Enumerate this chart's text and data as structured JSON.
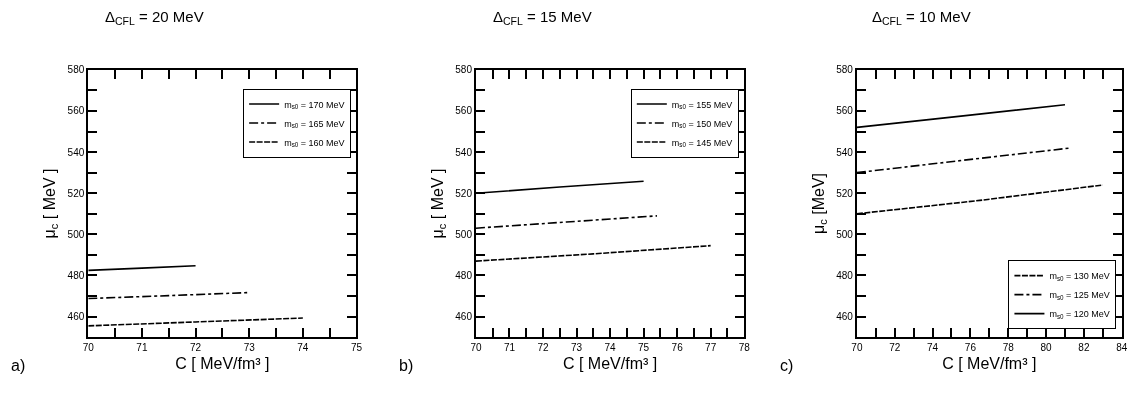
{
  "chart_data": [
    {
      "type": "line",
      "title": "Δ$_{CFL}$ = 20 MeV",
      "xlabel": "C [ MeV/fm³ ]",
      "ylabel": "μ$_{c}$ [ MeV ]",
      "annotations": [
        "a)"
      ],
      "legend": "top right",
      "xlim": [
        70,
        75
      ],
      "ylim": [
        450,
        580
      ],
      "xticks": [
        70,
        {
          "value": 70.5,
          "label": null
        },
        71,
        {
          "value": 71.5,
          "label": null
        },
        72,
        {
          "value": 72.5,
          "label": null
        },
        73,
        {
          "value": 73.5,
          "label": null
        },
        74,
        {
          "value": 74.5,
          "label": null
        },
        75
      ],
      "yticks": [
        460,
        {
          "value": 470,
          "label": null
        },
        480,
        {
          "value": 490,
          "label": null
        },
        500,
        {
          "value": 510,
          "label": null
        },
        520,
        {
          "value": 530,
          "label": null
        },
        540,
        {
          "value": 550,
          "label": null
        },
        560,
        {
          "value": 570,
          "label": null
        },
        580
      ],
      "series": [
        {
          "name": "m$_{s0}$ = 170 MeV",
          "color": "#000000",
          "line_style": "solid",
          "x": [
            70,
            71,
            72
          ],
          "values": [
            482.5,
            483.6,
            484.7
          ]
        },
        {
          "name": "m$_{s0}$ = 165 MeV",
          "color": "#000000",
          "line_style": "dashdot",
          "x": [
            70,
            71.5,
            73
          ],
          "values": [
            468.8,
            470.2,
            471.7
          ]
        },
        {
          "name": "m$_{s0}$ = 160 MeV",
          "color": "#000000",
          "line_style": "dashed",
          "x": [
            70,
            72,
            74
          ],
          "values": [
            455.5,
            457.4,
            459.3
          ]
        }
      ]
    },
    {
      "type": "line",
      "title": "Δ$_{CFL}$ = 15 MeV",
      "xlabel": "C [ MeV/fm³ ]",
      "ylabel": "μ$_{c}$ [ MeV ]",
      "annotations": [
        "b)"
      ],
      "legend": "top right",
      "xlim": [
        70,
        78
      ],
      "ylim": [
        450,
        580
      ],
      "xticks": [
        70,
        {
          "value": 70.5,
          "label": null
        },
        71,
        {
          "value": 71.5,
          "label": null
        },
        72,
        {
          "value": 72.5,
          "label": null
        },
        73,
        {
          "value": 73.5,
          "label": null
        },
        74,
        {
          "value": 74.5,
          "label": null
        },
        75,
        {
          "value": 75.5,
          "label": null
        },
        76,
        {
          "value": 76.5,
          "label": null
        },
        77,
        {
          "value": 77.5,
          "label": null
        },
        78
      ],
      "yticks": [
        460,
        {
          "value": 470,
          "label": null
        },
        480,
        {
          "value": 490,
          "label": null
        },
        500,
        {
          "value": 510,
          "label": null
        },
        520,
        {
          "value": 530,
          "label": null
        },
        540,
        {
          "value": 550,
          "label": null
        },
        560,
        {
          "value": 570,
          "label": null
        },
        580
      ],
      "series": [
        {
          "name": "m$_{s0}$ = 155 MeV",
          "color": "#000000",
          "line_style": "solid",
          "x": [
            70,
            72.5,
            75
          ],
          "values": [
            520,
            523,
            525.8
          ]
        },
        {
          "name": "m$_{s0}$ = 150 MeV",
          "color": "#000000",
          "line_style": "dashdot",
          "x": [
            70,
            72.7,
            75.4
          ],
          "values": [
            503,
            506,
            509
          ]
        },
        {
          "name": "m$_{s0}$ = 145 MeV",
          "color": "#000000",
          "line_style": "dashed",
          "x": [
            70,
            73.5,
            77
          ],
          "values": [
            487,
            490.5,
            494.5
          ]
        }
      ]
    },
    {
      "type": "line",
      "title": "Δ$_{CFL}$ = 10 MeV",
      "xlabel": "C [ MeV/fm³ ]",
      "ylabel": "μ$_{c}$ [MeV]",
      "annotations": [
        "c)"
      ],
      "legend": "bottom right",
      "xlim": [
        70,
        84
      ],
      "ylim": [
        450,
        580
      ],
      "xticks": [
        70,
        {
          "value": 71,
          "label": null
        },
        72,
        {
          "value": 73,
          "label": null
        },
        74,
        {
          "value": 75,
          "label": null
        },
        76,
        {
          "value": 77,
          "label": null
        },
        78,
        {
          "value": 79,
          "label": null
        },
        80,
        {
          "value": 81,
          "label": null
        },
        82,
        {
          "value": 83,
          "label": null
        },
        84
      ],
      "yticks": [
        460,
        {
          "value": 470,
          "label": null
        },
        480,
        {
          "value": 490,
          "label": null
        },
        500,
        {
          "value": 510,
          "label": null
        },
        520,
        {
          "value": 530,
          "label": null
        },
        540,
        {
          "value": 550,
          "label": null
        },
        560,
        {
          "value": 570,
          "label": null
        },
        580
      ],
      "series": [
        {
          "name": "m$_{s0}$ = 130 MeV",
          "color": "#000000",
          "line_style": "dashed",
          "x": [
            70,
            76.5,
            83
          ],
          "values": [
            510,
            516.5,
            524
          ]
        },
        {
          "name": "m$_{s0}$ = 125 MeV",
          "color": "#000000",
          "line_style": "dashdot",
          "x": [
            70,
            75.6,
            81.3
          ],
          "values": [
            530,
            536,
            542
          ]
        },
        {
          "name": "m$_{s0}$ = 120 MeV",
          "color": "#000000",
          "line_style": "solid",
          "x": [
            70,
            75.5,
            81
          ],
          "values": [
            552,
            557.5,
            563
          ]
        }
      ]
    }
  ]
}
